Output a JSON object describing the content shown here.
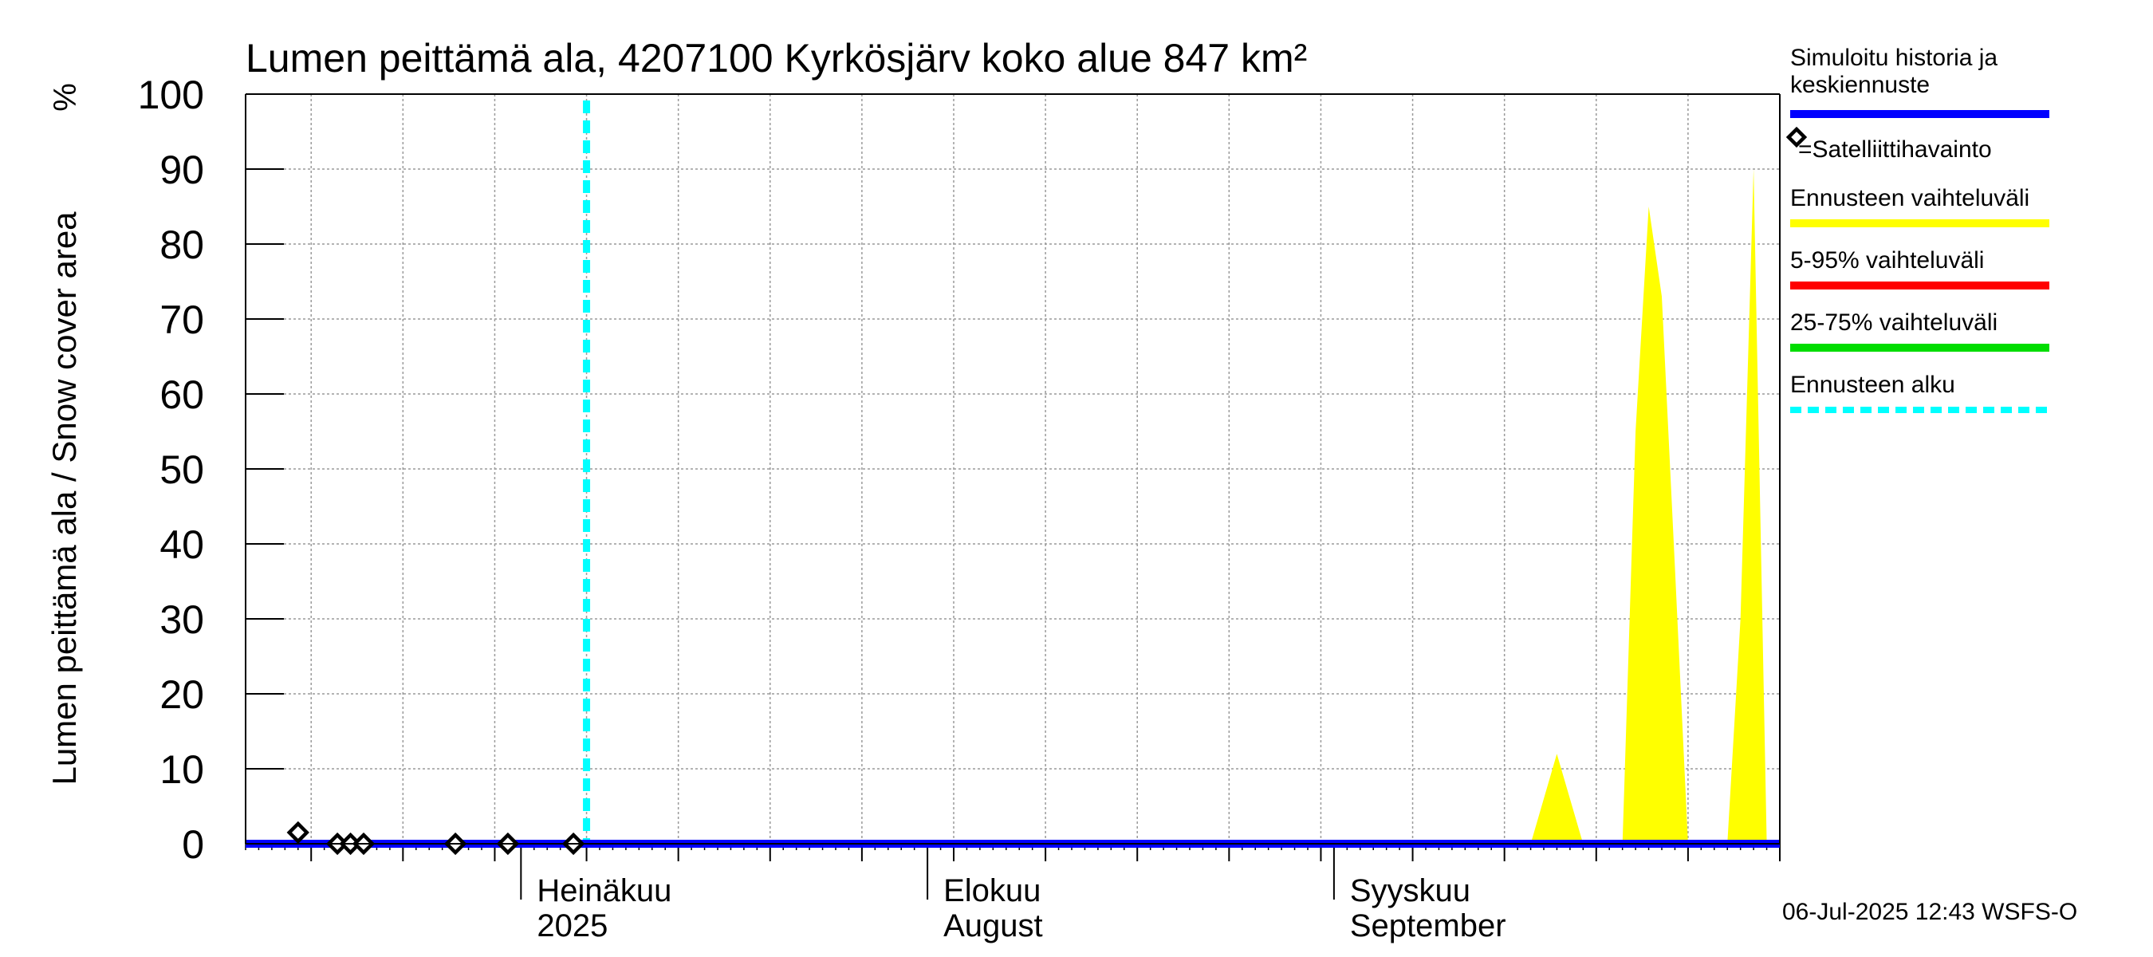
{
  "chart_data": {
    "type": "area",
    "title": "Lumen peittämä ala, 4207100 Kyrkösjärv koko alue 847 km²",
    "ylabel": "Lumen peittämä ala / Snow cover area",
    "yunit": "%",
    "ylim": [
      0,
      100
    ],
    "yticks": [
      0,
      10,
      20,
      30,
      40,
      50,
      60,
      70,
      80,
      90,
      100
    ],
    "xlim": [
      "2025-06-10",
      "2025-10-05"
    ],
    "month_labels": [
      {
        "date": "2025-07-01",
        "line1": "Heinäkuu",
        "line2": "2025"
      },
      {
        "date": "2025-08-01",
        "line1": "Elokuu",
        "line2": "August"
      },
      {
        "date": "2025-09-01",
        "line1": "Syyskuu",
        "line2": "September"
      }
    ],
    "forecast_start": "2025-07-06",
    "simulated": {
      "name": "Simuloitu historia ja keskiennuste",
      "color": "#0000ff",
      "x": [
        "2025-06-10",
        "2025-10-05"
      ],
      "y": [
        0,
        0
      ]
    },
    "satellite": {
      "name": "=Satelliittihavainto",
      "x": [
        "2025-06-14",
        "2025-06-17",
        "2025-06-18",
        "2025-06-19",
        "2025-06-26",
        "2025-06-30",
        "2025-07-05"
      ],
      "y": [
        1.5,
        0,
        0,
        0,
        0,
        0,
        0
      ]
    },
    "range_band": {
      "name": "Ennusteen vaihteluväli",
      "color": "#ffff00",
      "x": [
        "2025-09-16",
        "2025-09-18",
        "2025-09-20",
        "2025-09-23",
        "2025-09-24",
        "2025-09-25",
        "2025-09-26",
        "2025-09-27",
        "2025-09-28",
        "2025-09-29",
        "2025-09-30",
        "2025-10-01",
        "2025-10-02",
        "2025-10-03",
        "2025-10-04",
        "2025-10-05"
      ],
      "y": [
        0,
        12,
        0,
        0,
        55,
        85,
        73,
        37,
        0,
        0,
        0,
        0,
        30,
        90,
        0,
        0
      ]
    },
    "legend": [
      {
        "label": "Simuloitu historia ja keskiennuste",
        "color": "#0000ff",
        "style": "line"
      },
      {
        "label": "=Satelliittihavainto",
        "color": "#000000",
        "style": "diamond"
      },
      {
        "label": "Ennusteen vaihteluväli",
        "color": "#ffff00",
        "style": "line"
      },
      {
        "label": "5-95% vaihteluväli",
        "color": "#ff0000",
        "style": "line"
      },
      {
        "label": "25-75% vaihteluväli",
        "color": "#00dd00",
        "style": "line"
      },
      {
        "label": "Ennusteen alku",
        "color": "#00ffff",
        "style": "dashed"
      }
    ],
    "footer": "06-Jul-2025 12:43 WSFS-O",
    "grid": true,
    "legend_position": "right"
  }
}
